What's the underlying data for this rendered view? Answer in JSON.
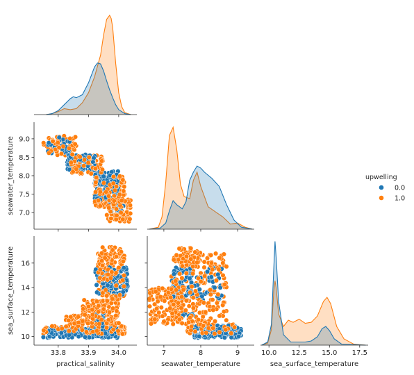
{
  "chart_data": {
    "type": "pairplot",
    "variables": [
      "practical_salinity",
      "seawater_temperature",
      "sea_surface_temperature"
    ],
    "hue": {
      "title": "upwelling",
      "levels": [
        {
          "label": "0.0",
          "color": "#1f77b4"
        },
        {
          "label": "1.0",
          "color": "#ff7f0e"
        }
      ]
    },
    "ranges": {
      "practical_salinity": [
        33.72,
        34.06
      ],
      "seawater_temperature": [
        6.55,
        9.45
      ],
      "sea_surface_temperature": [
        9.3,
        18.2
      ]
    },
    "ticks": {
      "practical_salinity": [
        33.8,
        33.9,
        34.0
      ],
      "seawater_temperature_x": [
        7,
        8,
        9
      ],
      "seawater_temperature_y": [
        7.0,
        7.5,
        8.0,
        8.5,
        9.0
      ],
      "sea_surface_temperature_x": [
        10.0,
        12.5,
        15.0,
        17.5
      ],
      "sea_surface_temperature_y": [
        10,
        12,
        14,
        16
      ]
    },
    "tick_labels": {
      "practical_salinity": [
        "33.8",
        "33.9",
        "34.0"
      ],
      "seawater_temperature_x": [
        "7",
        "8",
        "9"
      ],
      "seawater_temperature_y": [
        "7.0",
        "7.5",
        "8.0",
        "8.5",
        "9.0"
      ],
      "sea_surface_temperature_x": [
        "10.0",
        "12.5",
        "15.0",
        "17.5"
      ],
      "sea_surface_temperature_y": [
        "10",
        "12",
        "14",
        "16"
      ]
    },
    "axis_labels": {
      "x": [
        "practical_salinity",
        "seawater_temperature",
        "sea_surface_temperature"
      ],
      "y": [
        "seawater_temperature",
        "sea_surface_temperature"
      ]
    },
    "kde": {
      "practical_salinity": {
        "0.0": {
          "x": [
            33.76,
            33.78,
            33.8,
            33.82,
            33.84,
            33.85,
            33.86,
            33.88,
            33.9,
            33.92,
            33.93,
            33.94,
            33.95,
            33.96,
            33.97,
            33.98,
            33.99,
            34.0,
            34.02,
            34.04
          ],
          "y": [
            0.0,
            0.01,
            0.04,
            0.1,
            0.16,
            0.18,
            0.17,
            0.2,
            0.32,
            0.48,
            0.52,
            0.51,
            0.44,
            0.34,
            0.25,
            0.17,
            0.1,
            0.05,
            0.01,
            0.0
          ]
        },
        "1.0": {
          "x": [
            33.76,
            33.78,
            33.8,
            33.82,
            33.84,
            33.86,
            33.88,
            33.9,
            33.92,
            33.94,
            33.95,
            33.96,
            33.97,
            33.975,
            33.98,
            33.99,
            34.0,
            34.01,
            34.02,
            34.04
          ],
          "y": [
            0.0,
            0.01,
            0.03,
            0.06,
            0.05,
            0.06,
            0.12,
            0.22,
            0.38,
            0.6,
            0.8,
            0.96,
            1.0,
            0.97,
            0.88,
            0.52,
            0.22,
            0.08,
            0.02,
            0.0
          ]
        }
      },
      "seawater_temperature": {
        "0.0": {
          "x": [
            6.6,
            6.9,
            7.05,
            7.15,
            7.25,
            7.35,
            7.5,
            7.6,
            7.7,
            7.8,
            7.9,
            8.0,
            8.1,
            8.3,
            8.5,
            8.7,
            8.9,
            9.1,
            9.4
          ],
          "y": [
            0.0,
            0.01,
            0.06,
            0.18,
            0.28,
            0.24,
            0.2,
            0.27,
            0.48,
            0.56,
            0.62,
            0.6,
            0.56,
            0.5,
            0.42,
            0.24,
            0.09,
            0.02,
            0.0
          ]
        },
        "1.0": {
          "x": [
            6.6,
            6.85,
            6.95,
            7.05,
            7.15,
            7.25,
            7.35,
            7.45,
            7.55,
            7.7,
            7.8,
            7.9,
            8.0,
            8.2,
            8.4,
            8.6,
            8.8,
            9.0,
            9.2,
            9.4
          ],
          "y": [
            0.0,
            0.02,
            0.12,
            0.46,
            0.92,
            1.0,
            0.78,
            0.44,
            0.32,
            0.3,
            0.48,
            0.56,
            0.42,
            0.22,
            0.17,
            0.12,
            0.05,
            0.06,
            0.02,
            0.0
          ]
        }
      },
      "sea_surface_temperature": {
        "0.0": {
          "x": [
            9.4,
            9.9,
            10.2,
            10.4,
            10.5,
            10.6,
            10.8,
            11.2,
            11.8,
            12.5,
            13.0,
            13.5,
            14.0,
            14.4,
            14.7,
            15.0,
            15.4,
            16.0,
            18.0
          ],
          "y": [
            0.0,
            0.03,
            0.2,
            0.75,
            1.0,
            0.84,
            0.42,
            0.1,
            0.03,
            0.03,
            0.03,
            0.04,
            0.08,
            0.16,
            0.18,
            0.14,
            0.06,
            0.01,
            0.0
          ]
        },
        "1.0": {
          "x": [
            9.4,
            9.9,
            10.2,
            10.4,
            10.5,
            10.6,
            10.8,
            11.2,
            11.6,
            12.0,
            12.5,
            13.0,
            13.5,
            14.0,
            14.5,
            14.8,
            15.1,
            15.6,
            16.2,
            17.0,
            18.0
          ],
          "y": [
            0.0,
            0.02,
            0.15,
            0.52,
            0.62,
            0.55,
            0.3,
            0.18,
            0.24,
            0.22,
            0.25,
            0.21,
            0.22,
            0.28,
            0.42,
            0.46,
            0.4,
            0.18,
            0.06,
            0.01,
            0.0
          ]
        }
      }
    },
    "scatter_clusters": {
      "psal_vs_swt": {
        "1.0": [
          {
            "x": [
              33.75,
              33.86
            ],
            "y": [
              8.55,
              9.08
            ],
            "n": 70
          },
          {
            "x": [
              33.84,
              33.95
            ],
            "y": [
              8.05,
              8.55
            ],
            "n": 110
          },
          {
            "x": [
              33.92,
              34.02
            ],
            "y": [
              7.15,
              8.0
            ],
            "n": 180
          },
          {
            "x": [
              33.96,
              34.04
            ],
            "y": [
              6.75,
              7.35
            ],
            "n": 90
          }
        ],
        "0.0": [
          {
            "x": [
              33.76,
              33.84
            ],
            "y": [
              8.6,
              9.05
            ],
            "n": 30
          },
          {
            "x": [
              33.83,
              33.93
            ],
            "y": [
              8.15,
              8.6
            ],
            "n": 60
          },
          {
            "x": [
              33.92,
              34.0
            ],
            "y": [
              7.35,
              8.15
            ],
            "n": 110
          },
          {
            "x": [
              33.97,
              34.02
            ],
            "y": [
              7.0,
              7.3
            ],
            "n": 20
          }
        ]
      },
      "psal_vs_sst": {
        "1.0": [
          {
            "x": [
              33.75,
              34.02
            ],
            "y": [
              10.2,
              10.9
            ],
            "n": 150
          },
          {
            "x": [
              33.82,
              34.0
            ],
            "y": [
              11.0,
              11.7
            ],
            "n": 90
          },
          {
            "x": [
              33.88,
              34.0
            ],
            "y": [
              11.7,
              13.0
            ],
            "n": 100
          },
          {
            "x": [
              33.93,
              34.02
            ],
            "y": [
              13.0,
              17.3
            ],
            "n": 200
          }
        ],
        "0.0": [
          {
            "x": [
              33.75,
              34.0
            ],
            "y": [
              9.9,
              10.7
            ],
            "n": 160
          },
          {
            "x": [
              33.92,
              34.03
            ],
            "y": [
              13.3,
              15.7
            ],
            "n": 100
          },
          {
            "x": [
              33.92,
              33.95
            ],
            "y": [
              10.7,
              12.0
            ],
            "n": 15
          }
        ]
      },
      "swt_vs_sst": {
        "1.0": [
          {
            "x": [
              6.6,
              7.5
            ],
            "y": [
              11.0,
              14.0
            ],
            "n": 120
          },
          {
            "x": [
              7.2,
              8.7
            ],
            "y": [
              11.0,
              16.8
            ],
            "n": 260
          },
          {
            "x": [
              7.4,
              8.0
            ],
            "y": [
              16.0,
              17.3
            ],
            "n": 40
          },
          {
            "x": [
              7.6,
              9.0
            ],
            "y": [
              10.2,
              11.0
            ],
            "n": 80
          }
        ],
        "0.0": [
          {
            "x": [
              7.2,
              8.6
            ],
            "y": [
              13.0,
              15.7
            ],
            "n": 90
          },
          {
            "x": [
              7.8,
              9.1
            ],
            "y": [
              9.9,
              10.9
            ],
            "n": 150
          },
          {
            "x": [
              7.5,
              7.8
            ],
            "y": [
              11.5,
              12.0
            ],
            "n": 10
          }
        ]
      }
    },
    "legend_position": "right"
  }
}
